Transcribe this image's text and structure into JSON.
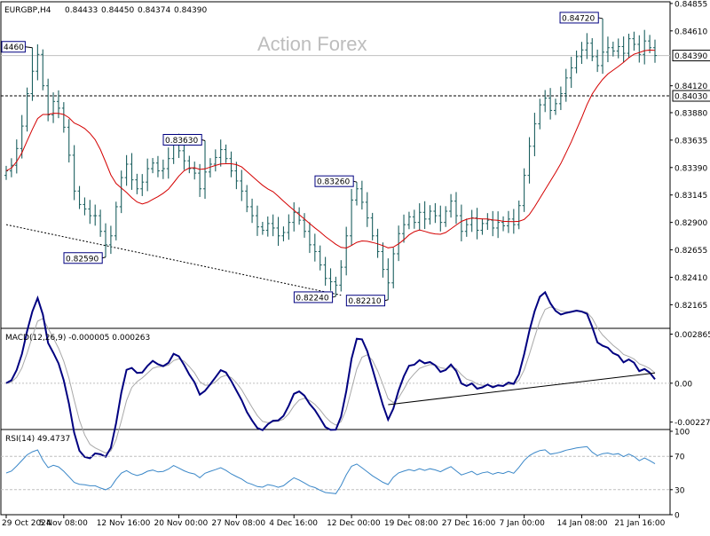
{
  "chart_data": {
    "type": "candlestick",
    "header": {
      "symbol": "EURGBP,H4",
      "ohlc": [
        "0.84433",
        "0.84450",
        "0.84374",
        "0.84390"
      ]
    },
    "watermark": "Action Forex",
    "price": {
      "ylim": [
        0.8197,
        0.8487
      ],
      "tick_labels": [
        "0.84855",
        "0.84610",
        "0.84390",
        "0.84120",
        "0.84030",
        "0.83880",
        "0.83635",
        "0.83390",
        "0.83145",
        "0.82900",
        "0.82655",
        "0.82410",
        "0.82165"
      ],
      "tick_values": [
        0.84855,
        0.8461,
        0.8439,
        0.8412,
        0.8403,
        0.8388,
        0.83635,
        0.8339,
        0.83145,
        0.829,
        0.82655,
        0.8241,
        0.82165
      ],
      "current_price": {
        "label": "0.84390",
        "value": 0.8439
      },
      "support_line": {
        "label": "0.84030",
        "value": 0.8403
      },
      "annotations": [
        {
          "label": "4460",
          "x": 5,
          "y": 0.8446
        },
        {
          "label": "0.82590",
          "x": 19,
          "y": 0.8259
        },
        {
          "label": "0.83630",
          "x": 38,
          "y": 0.8363
        },
        {
          "label": "0.82240",
          "x": 63,
          "y": 0.8224
        },
        {
          "label": "0.83260",
          "x": 67,
          "y": 0.8326
        },
        {
          "label": "0.82210",
          "x": 73,
          "y": 0.8221
        },
        {
          "label": "0.84720",
          "x": 114,
          "y": 0.8472
        }
      ],
      "trendline": {
        "from": [
          0,
          0.8288
        ],
        "to": [
          64,
          0.8225
        ]
      },
      "close": [
        0.8336,
        0.8341,
        0.8356,
        0.8376,
        0.8405,
        0.8425,
        0.844,
        0.8412,
        0.8386,
        0.8398,
        0.8392,
        0.8375,
        0.835,
        0.8318,
        0.8306,
        0.8302,
        0.8296,
        0.8296,
        0.8282,
        0.827,
        0.8278,
        0.8304,
        0.833,
        0.8342,
        0.8328,
        0.832,
        0.8326,
        0.8338,
        0.8343,
        0.8336,
        0.8338,
        0.8347,
        0.8362,
        0.8354,
        0.8345,
        0.8338,
        0.8334,
        0.832,
        0.8335,
        0.8342,
        0.8348,
        0.8355,
        0.8347,
        0.8336,
        0.8327,
        0.8318,
        0.8304,
        0.8296,
        0.8286,
        0.8283,
        0.8289,
        0.8285,
        0.8278,
        0.8281,
        0.829,
        0.8299,
        0.8292,
        0.8282,
        0.827,
        0.8264,
        0.8252,
        0.824,
        0.8237,
        0.8234,
        0.825,
        0.8278,
        0.831,
        0.832,
        0.8308,
        0.8294,
        0.8278,
        0.8264,
        0.8248,
        0.8236,
        0.8262,
        0.828,
        0.8288,
        0.8295,
        0.829,
        0.8299,
        0.8293,
        0.83,
        0.8296,
        0.829,
        0.83,
        0.8309,
        0.8296,
        0.8282,
        0.8288,
        0.8294,
        0.8283,
        0.8289,
        0.8292,
        0.8285,
        0.829,
        0.8287,
        0.8293,
        0.8288,
        0.8305,
        0.8332,
        0.8358,
        0.8378,
        0.8395,
        0.8401,
        0.839,
        0.8396,
        0.8405,
        0.8419,
        0.8428,
        0.8438,
        0.8444,
        0.845,
        0.8438,
        0.843,
        0.8442,
        0.8446,
        0.8443,
        0.8447,
        0.8441,
        0.8454,
        0.8449,
        0.844,
        0.8452,
        0.8446,
        0.8439
      ],
      "ma_offset": 3
    },
    "x_axis": {
      "n_bars": 125,
      "labels": [
        {
          "text": "29 Oct 2024",
          "i": 0
        },
        {
          "text": "5 Nov 08:00",
          "i": 11
        },
        {
          "text": "12 Nov 16:00",
          "i": 22
        },
        {
          "text": "20 Nov 00:00",
          "i": 33
        },
        {
          "text": "27 Nov 08:00",
          "i": 44
        },
        {
          "text": "4 Dec 16:00",
          "i": 55
        },
        {
          "text": "12 Dec 00:00",
          "i": 66
        },
        {
          "text": "19 Dec 08:00",
          "i": 77
        },
        {
          "text": "27 Dec 16:00",
          "i": 88
        },
        {
          "text": "7 Jan 00:00",
          "i": 99
        },
        {
          "text": "14 Jan 08:00",
          "i": 110
        },
        {
          "text": "21 Jan 16:00",
          "i": 121
        }
      ]
    },
    "macd": {
      "label": "MACD(12,26,9) -0.000005 0.000263",
      "ylim": [
        -0.0026,
        0.0031
      ],
      "tick_labels": [
        "0.002865",
        "0.00",
        "-0.002271"
      ],
      "tick_values": [
        0.002865,
        0.0,
        -0.002271
      ],
      "current_label": "0.00",
      "signal_lag": 4,
      "trendline": {
        "from": [
          73,
          -0.00125
        ],
        "to": [
          124,
          0.0006
        ]
      }
    },
    "rsi": {
      "label": "RSI(14) 49.4737",
      "ylim": [
        0,
        100
      ],
      "tick_labels": [
        "100",
        "70",
        "30",
        "0"
      ],
      "tick_values": [
        100,
        70,
        30,
        0
      ],
      "levels": [
        70,
        30
      ]
    },
    "colors": {
      "bar": "#1b5f5f",
      "ma": "#d40000",
      "macd": "#000080",
      "signal": "#a8a8a8",
      "rsi": "#3a87c8",
      "grid": "#c0c0c0",
      "label_border": "#000080"
    }
  }
}
